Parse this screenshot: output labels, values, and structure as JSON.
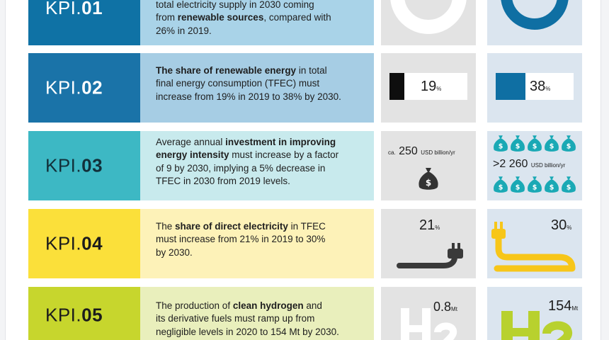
{
  "kpi01": {
    "label_prefix": "KPI.",
    "label_num": "01",
    "desc_line1": "total electricity supply in 2030 coming",
    "desc_bold2": "renewable sources",
    "desc_pre2": "from ",
    "desc_post2": ", compared with",
    "desc_line3": "26% in 2019."
  },
  "kpi02": {
    "label_prefix": "KPI.",
    "label_num": "02",
    "desc_bold1": "The share of renewable energy",
    "desc_post1": " in total",
    "desc_line2": "final energy consumption (TFEC) must",
    "desc_line3": "increase from 19% in 2019 to 38% by 2030.",
    "value_2019": "19",
    "value_2030": "38",
    "unit": "%",
    "fill_2019": 0.19,
    "fill_2030": 0.38
  },
  "kpi03": {
    "label_prefix": "KPI.",
    "label_num": "03",
    "desc_pre1": "Average annual ",
    "desc_bold1": "investment in improving",
    "desc_bold2": "energy intensity",
    "desc_post2": " must increase by a factor",
    "desc_line3": "of 9 by 2030, implying a 5% decrease in",
    "desc_line4": "TFEC in 2030 from 2019 levels.",
    "value_2019_prefix": "ca.",
    "value_2019": "250",
    "value_2019_unit": "USD billion/yr",
    "value_2030": ">2 260",
    "value_2030_unit": "USD billion/yr",
    "icon": "money-bag-icon",
    "bag_symbol": "$"
  },
  "kpi04": {
    "label_prefix": "KPI.",
    "label_num": "04",
    "desc_pre1": "The ",
    "desc_bold1": "share of direct electricity",
    "desc_post1": " in TFEC",
    "desc_line2": "must increase from 21% in 2019 to 30%",
    "desc_line3": "by 2030.",
    "value_2019": "21",
    "value_2030": "30",
    "unit": "%",
    "icon": "electric-plug-icon"
  },
  "kpi05": {
    "label_prefix": "KPI.",
    "label_num": "05",
    "desc_pre1": "The production of ",
    "desc_bold1": "clean hydrogen",
    "desc_post1": " and",
    "desc_line2": "its derivative fuels must ramp up from",
    "desc_line3": "negligible levels in 2020 to 154 Mt by 2030.",
    "value_2020": "0.8",
    "value_2030": "154",
    "unit": "Mt",
    "icon": "hydrogen-h2-icon"
  },
  "colors": {
    "kpi01": "#0f72a5",
    "kpi01_light": "#a9d3e8",
    "kpi02": "#1a73a8",
    "kpi02_light": "#a6cde4",
    "kpi03": "#3db8c4",
    "kpi03_light": "#c8eaed",
    "kpi04": "#fbe03a",
    "kpi04_light": "#fdf2b8",
    "kpi05": "#c7d62d",
    "kpi05_light": "#e9efbc",
    "cyan": "#1aa9b5",
    "yellow": "#f7c619",
    "lime": "#b8d12e",
    "dark": "#1c1c1c"
  }
}
